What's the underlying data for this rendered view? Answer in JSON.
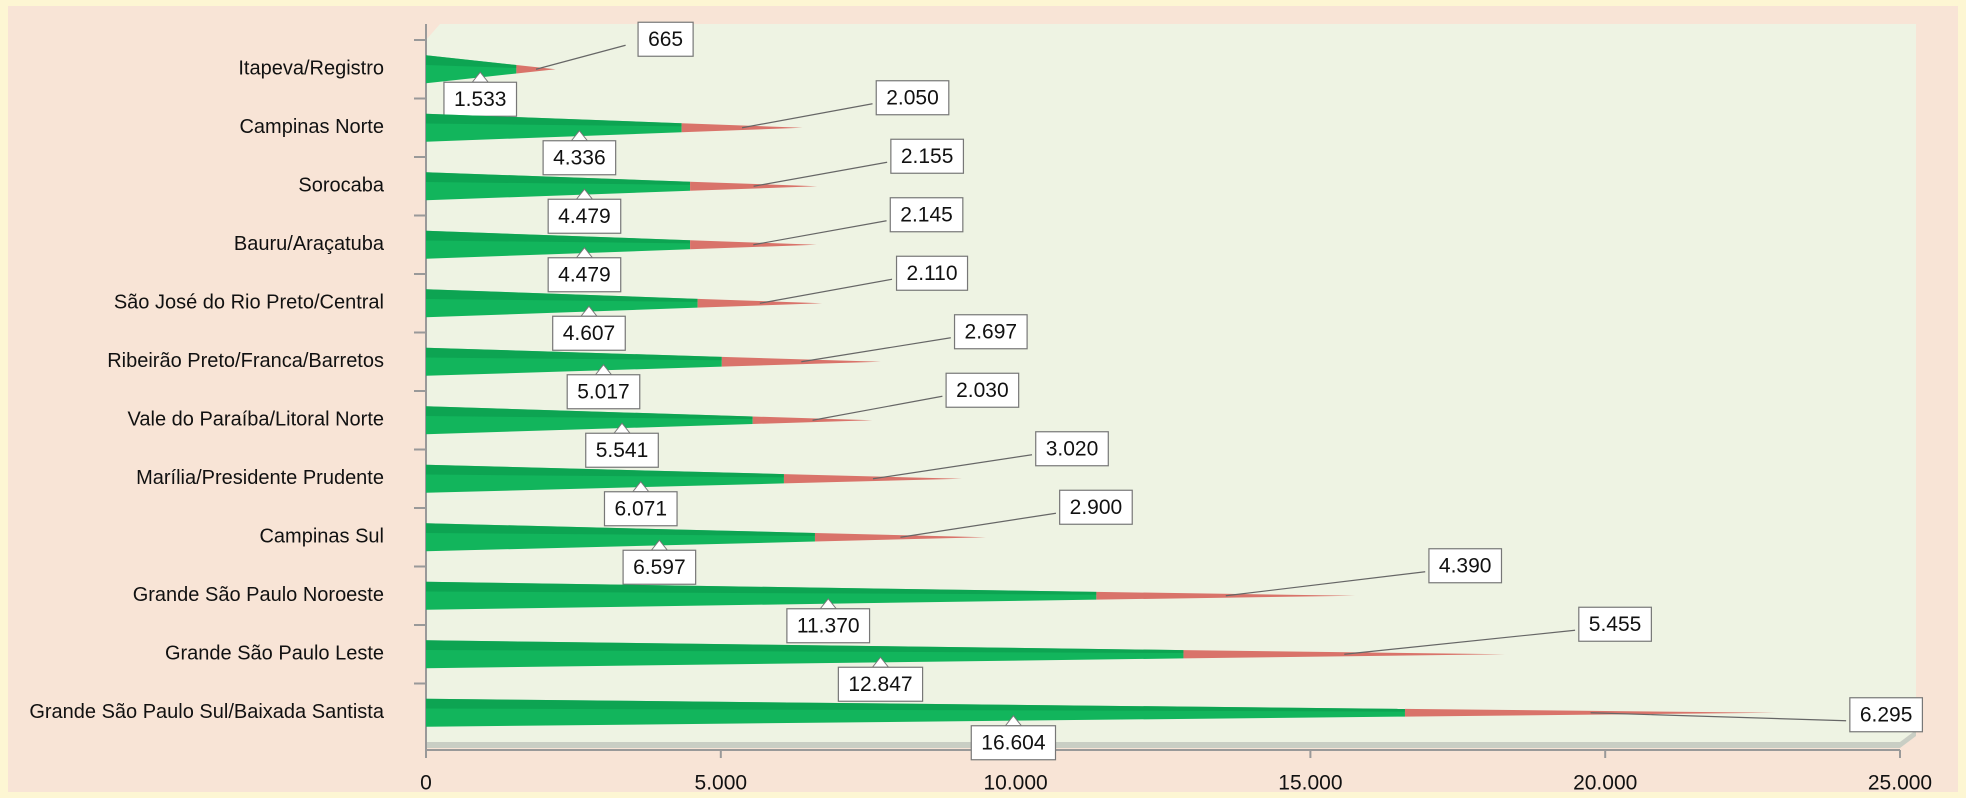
{
  "chart_data": {
    "type": "bar",
    "orientation": "horizontal",
    "stacked": true,
    "categories": [
      "Itapeva/Registro",
      "Campinas Norte",
      "Sorocaba",
      "Bauru/Araçatuba",
      "São José do Rio Preto/Central",
      "Ribeirão Preto/Franca/Barretos",
      "Vale do Paraíba/Litoral Norte",
      "Marília/Presidente Prudente",
      "Campinas Sul",
      "Grande São Paulo Noroeste",
      "Grande São Paulo Leste",
      "Grande São Paulo Sul/Baixada Santista"
    ],
    "series": [
      {
        "color": "#12b55c",
        "values": [
          1533,
          4336,
          4479,
          4479,
          4607,
          5017,
          5541,
          6071,
          6597,
          11370,
          12847,
          16604
        ],
        "value_labels": [
          "1.533",
          "4.336",
          "4.479",
          "4.479",
          "4.607",
          "5.017",
          "5.541",
          "6.071",
          "6.597",
          "11.370",
          "12.847",
          "16.604"
        ]
      },
      {
        "color": "#d9736a",
        "values": [
          665,
          2050,
          2155,
          2145,
          2110,
          2697,
          2030,
          3020,
          2900,
          4390,
          5455,
          6295
        ],
        "value_labels": [
          "665",
          "2.050",
          "2.155",
          "2.145",
          "2.110",
          "2.697",
          "2.030",
          "3.020",
          "2.900",
          "4.390",
          "5.455",
          "6.295"
        ]
      }
    ],
    "xlim": [
      0,
      25000
    ],
    "xticks": [
      0,
      {
        "value": 5000,
        "label": "5.000"
      },
      {
        "value": 10000,
        "label": "10.000"
      },
      {
        "value": 15000,
        "label": "15.000"
      },
      {
        "value": 20000,
        "label": "20.000"
      },
      {
        "value": 25000,
        "label": "25.000"
      }
    ]
  }
}
